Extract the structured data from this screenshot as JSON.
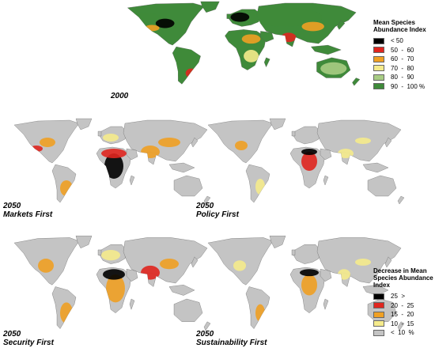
{
  "maps": [
    {
      "year": "2000",
      "scenario": "",
      "theme": "msa"
    },
    {
      "year": "2050",
      "scenario": "Markets First",
      "theme": "markets"
    },
    {
      "year": "2050",
      "scenario": "Policy First",
      "theme": "policy"
    },
    {
      "year": "2050",
      "scenario": "Security First",
      "theme": "security"
    },
    {
      "year": "2050",
      "scenario": "Sustainability First",
      "theme": "sustain"
    }
  ],
  "legend_msa": {
    "title_lines": [
      "Mean Species",
      "Abundance Index"
    ],
    "items": [
      {
        "label": "< 50",
        "color": "#000000"
      },
      {
        "label": "50  -  60",
        "color": "#e0261f"
      },
      {
        "label": "60  -  70",
        "color": "#f0a023"
      },
      {
        "label": "70  -  80",
        "color": "#f5eb8c"
      },
      {
        "label": "80  -  90",
        "color": "#a8cc84"
      },
      {
        "label": "90  -  100 %",
        "color": "#3f8a3a"
      }
    ]
  },
  "legend_decrease": {
    "title_lines": [
      "Decrease in Mean",
      "Species Abundance",
      "Index"
    ],
    "items": [
      {
        "label": "25  >",
        "color": "#000000"
      },
      {
        "label": "20  -  25",
        "color": "#e0261f"
      },
      {
        "label": "15  -  20",
        "color": "#f0a023"
      },
      {
        "label": "10  -  15",
        "color": "#f5eb8c"
      },
      {
        "label": "<  10  %",
        "color": "#c4c4c4"
      }
    ]
  }
}
